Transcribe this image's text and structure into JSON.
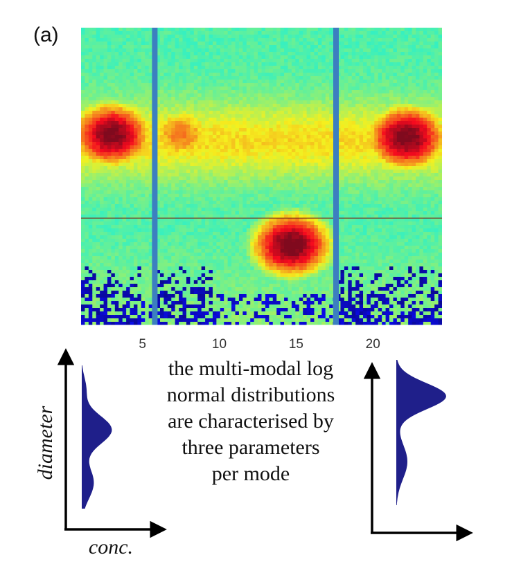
{
  "panel_label": "(a)",
  "caption_lines": [
    "the multi-modal log",
    "normal distributions",
    "are characterised by",
    "three parameters",
    "per mode"
  ],
  "colors": {
    "axis": "#000000",
    "mode_fill": "#1f1f8a",
    "heatmap_low": "#1b2a8f",
    "heatmap_high": "#d23a1e",
    "divider": "#3c7fc0"
  },
  "chart_data": {
    "type": "heatmap",
    "title": "",
    "xlabel": "",
    "ylabel": "",
    "x_ticks": [
      5,
      10,
      15,
      20
    ],
    "xlim": [
      1,
      24.5
    ],
    "colormap": "jet",
    "vertical_divider_lines": [
      5.8,
      17.6
    ],
    "horizontal_reference_line_fraction": 0.64,
    "intensity_shape": {
      "description_free": true,
      "modes": [
        {
          "x": 3.0,
          "level": 0.64,
          "intensity": 0.96
        },
        {
          "x": 7.5,
          "level": 0.64,
          "intensity": 0.7
        },
        {
          "x": 14.7,
          "level": 0.27,
          "intensity": 0.98
        },
        {
          "x": 22.2,
          "level": 0.63,
          "intensity": 0.97
        }
      ]
    },
    "insets": [
      {
        "name": "left-distribution",
        "xlabel": "conc.",
        "ylabel": "diameter",
        "modes": [
          {
            "diameter": 0.18,
            "concentration": 0.28,
            "width": 0.11
          },
          {
            "diameter": 0.55,
            "concentration": 0.7,
            "width": 0.1
          },
          {
            "diameter": 0.84,
            "concentration": 0.1,
            "width": 0.08
          }
        ]
      },
      {
        "name": "right-distribution",
        "xlabel": "",
        "ylabel": "",
        "modes": [
          {
            "diameter": 0.3,
            "concentration": 0.2,
            "width": 0.12
          },
          {
            "diameter": 0.75,
            "concentration": 0.9,
            "width": 0.09
          }
        ]
      }
    ]
  }
}
